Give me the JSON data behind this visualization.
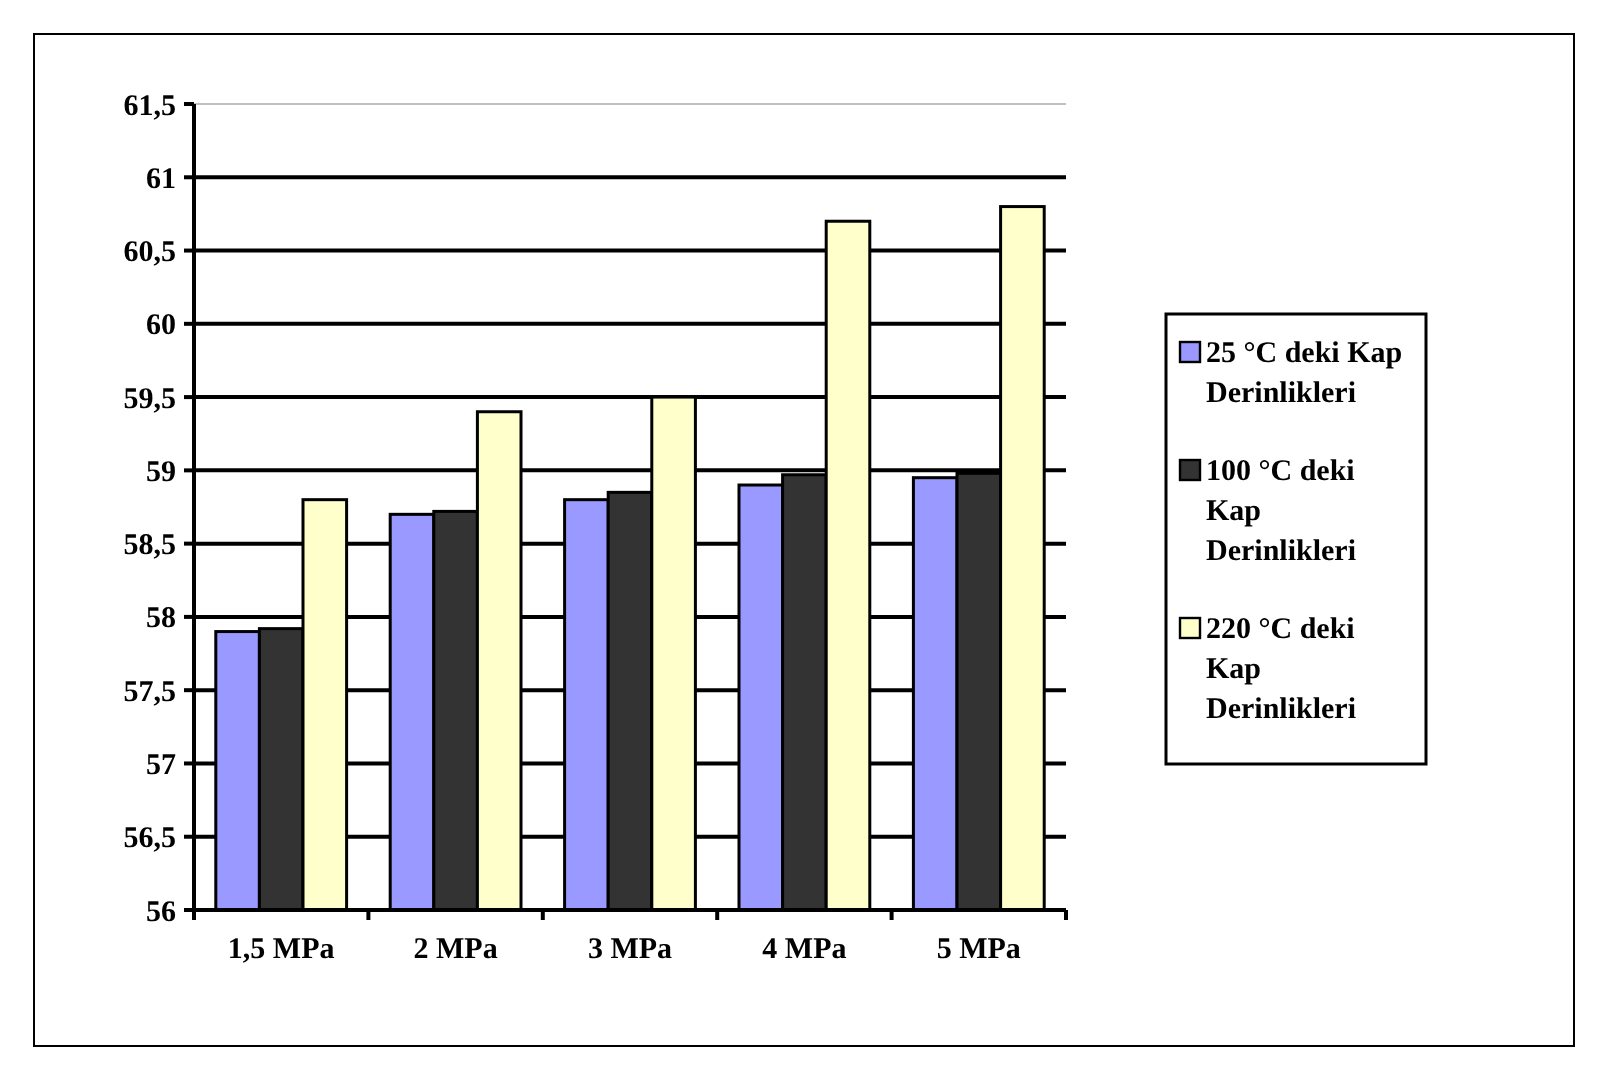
{
  "chart_data": {
    "type": "bar",
    "categories": [
      "1,5 MPa",
      "2 MPa",
      "3 MPa",
      "4 MPa",
      "5 MPa"
    ],
    "series": [
      {
        "name": "25 °C deki Kap Derinlikleri",
        "color": "#9999ff",
        "values": [
          57.9,
          58.7,
          58.8,
          58.9,
          58.95
        ]
      },
      {
        "name": "100 °C deki Kap Derinlikleri",
        "color": "#333333",
        "values": [
          57.92,
          58.72,
          58.85,
          58.97,
          58.98
        ]
      },
      {
        "name": "220 °C deki Kap Derinlikleri",
        "color": "#ffffcc",
        "values": [
          58.8,
          59.4,
          59.5,
          60.7,
          60.8
        ]
      }
    ],
    "ylim": [
      56,
      61.5
    ],
    "yticks": [
      56,
      {
        "value": 56.5,
        "label": "56,5"
      },
      57,
      {
        "value": 57.5,
        "label": "57,5"
      },
      58,
      {
        "value": 58.5,
        "label": "58,5"
      },
      59,
      {
        "value": 59.5,
        "label": "59,5"
      },
      60,
      {
        "value": 60.5,
        "label": "60,5"
      },
      61,
      {
        "value": 61.5,
        "label": "61,5"
      }
    ],
    "grid": "y",
    "legend": "right"
  }
}
